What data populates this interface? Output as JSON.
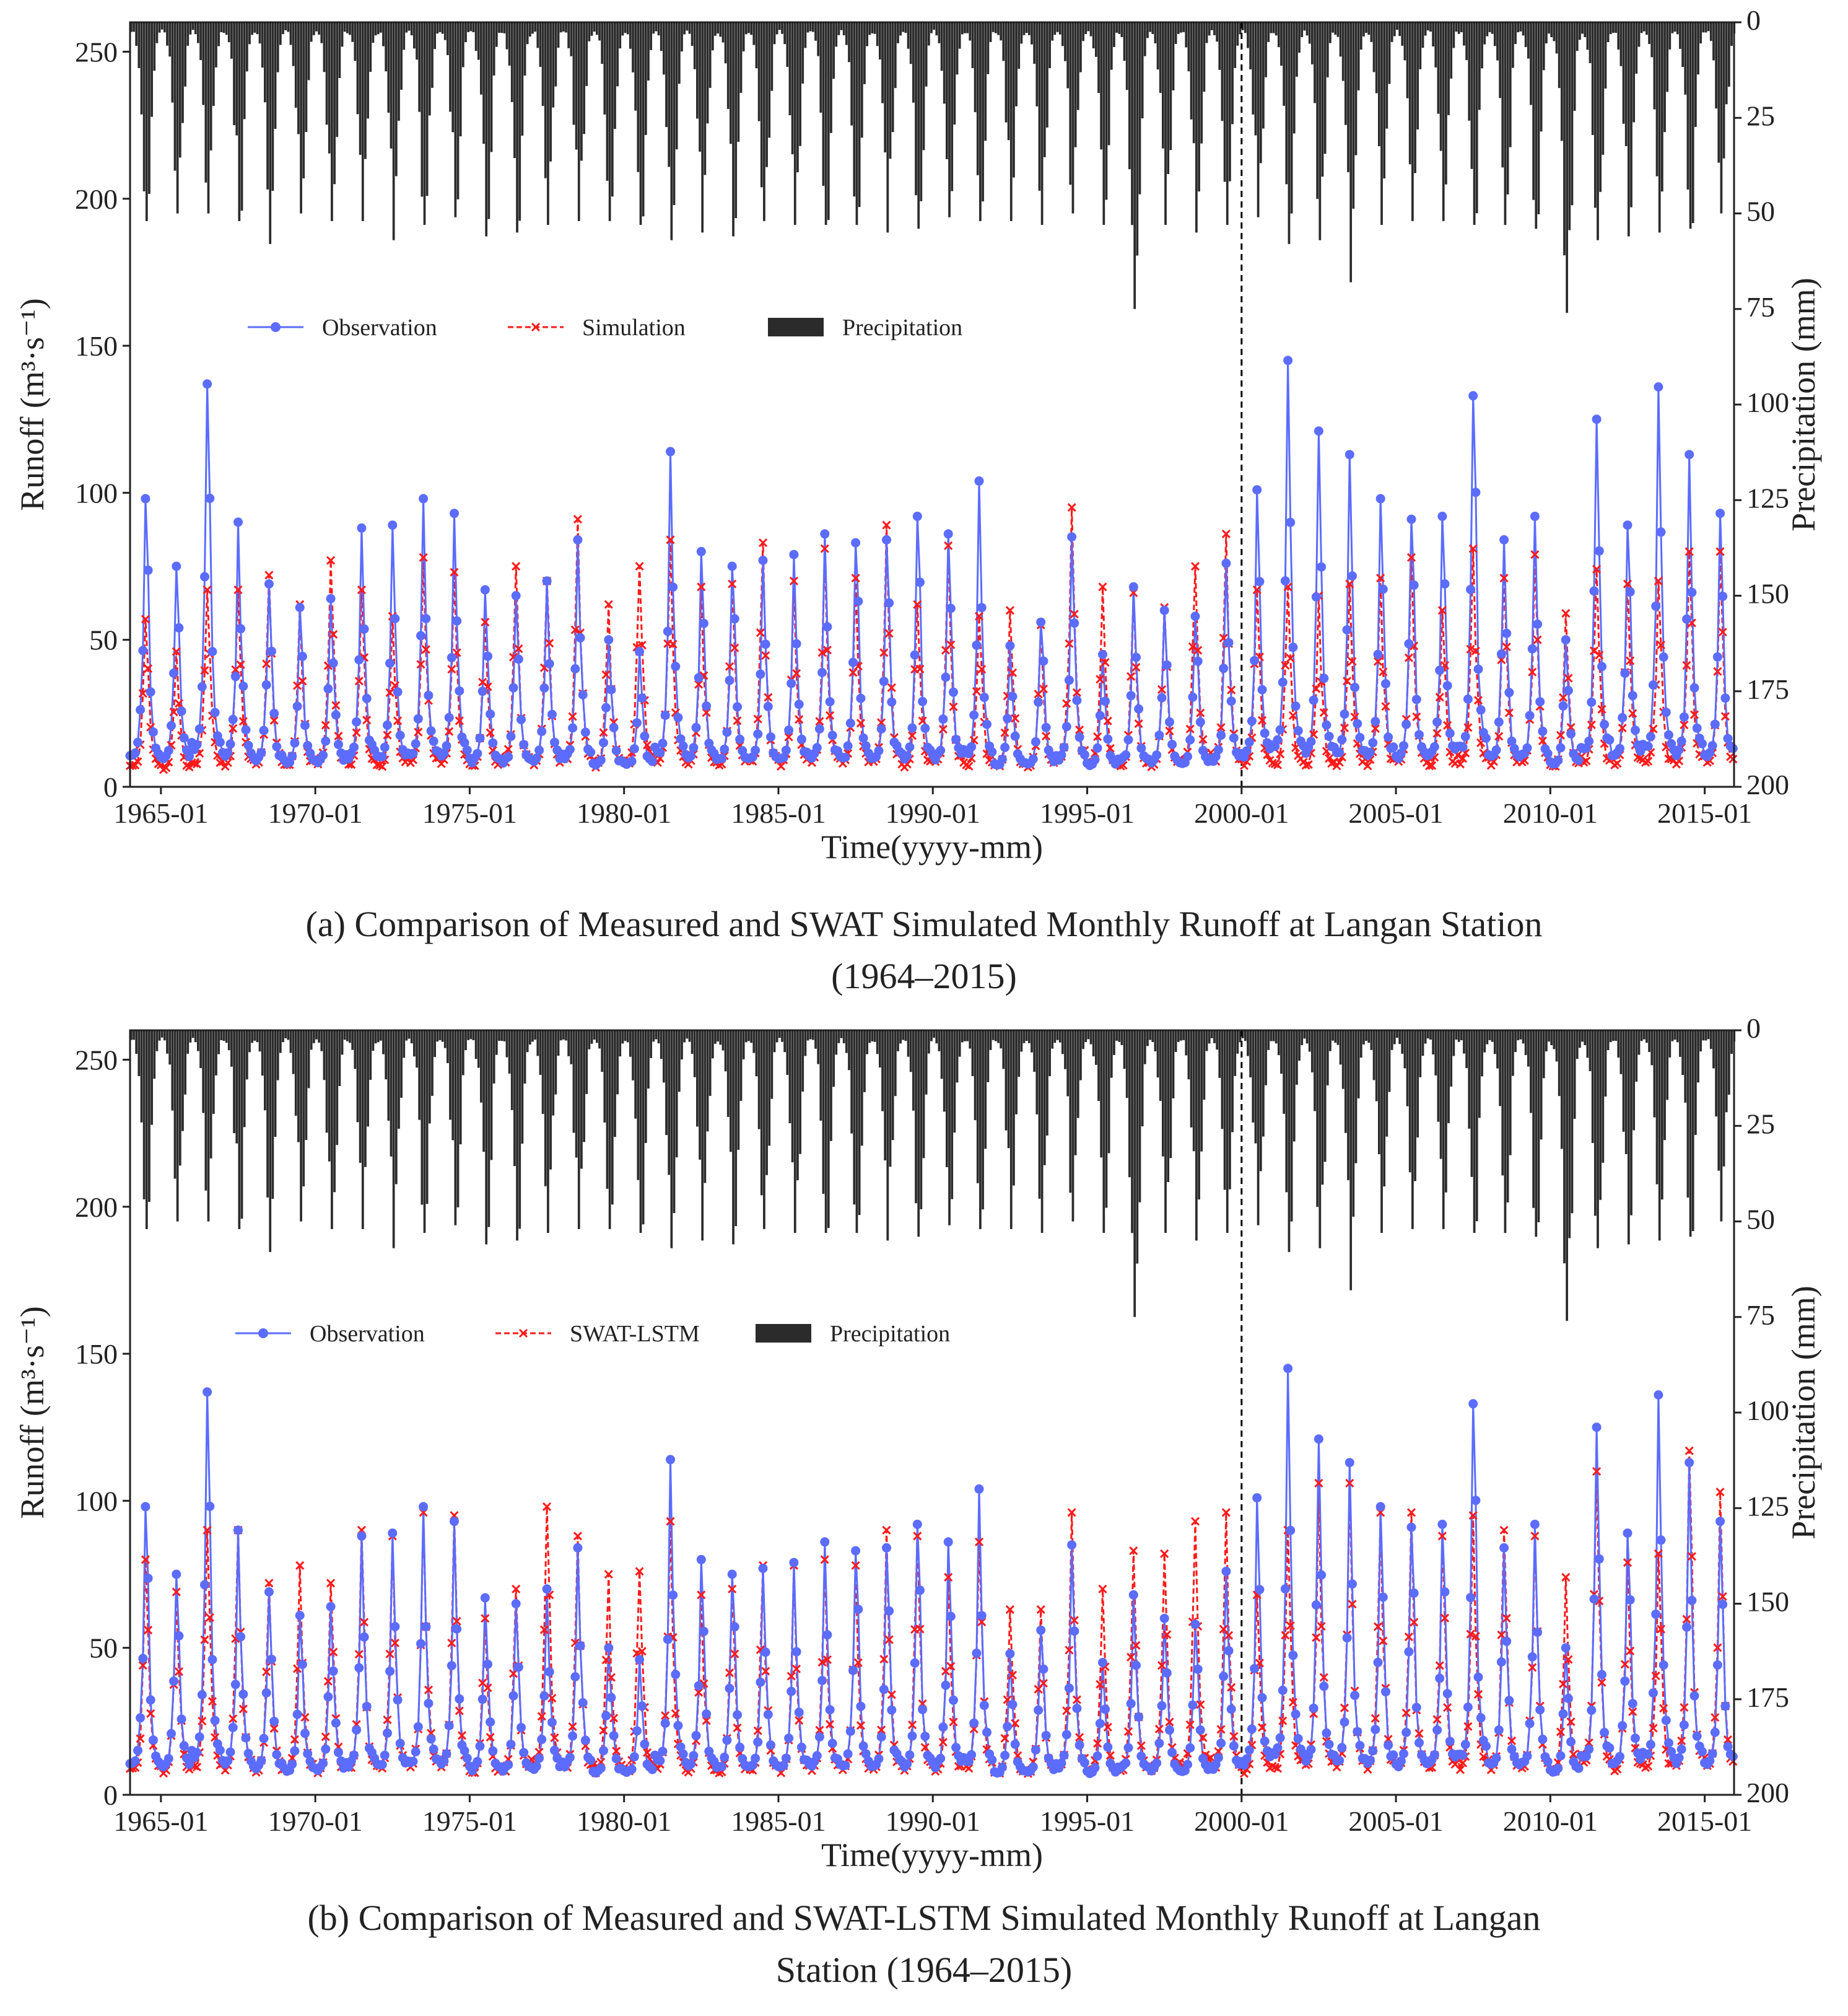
{
  "figure": {
    "caption_a_line1": "(a) Comparison of Measured and SWAT Simulated Monthly Runoff at Langan Station",
    "caption_a_line2": "(1964–2015)",
    "caption_b_line1": "(b) Comparison of Measured and SWAT-LSTM Simulated Monthly Runoff at Langan",
    "caption_b_line2": "Station (1964–2015)"
  },
  "colors": {
    "observation": "#5b6cff",
    "simulation": "#ff1a1a",
    "precipitation": "#2b2b2b",
    "divider": "#000000"
  },
  "chart_data": [
    {
      "type": "line",
      "panel": "a",
      "xlabel": "Time(yyyy-mm)",
      "ylabel": "Runoff (m³·s⁻¹)",
      "y2label": "Precipitation (mm)",
      "xlim": [
        1964,
        2015.95
      ],
      "ylim": [
        0,
        260
      ],
      "y2lim": [
        200,
        0
      ],
      "x_ticks": [
        "1965-01",
        "1970-01",
        "1975-01",
        "1980-01",
        "1985-01",
        "1990-01",
        "1995-01",
        "2000-01",
        "2005-01",
        "2010-01",
        "2015-01"
      ],
      "x_tick_values": [
        1965,
        1970,
        1975,
        1980,
        1985,
        1990,
        1995,
        2000,
        2005,
        2010,
        2015
      ],
      "y_ticks": [
        0,
        50,
        100,
        150,
        200,
        250
      ],
      "y2_ticks": [
        0,
        25,
        50,
        75,
        100,
        125,
        150,
        175,
        200
      ],
      "divider_x": 2000,
      "legend": {
        "position": "upper-left",
        "entries": [
          "Observation",
          "Simulation",
          "Precipitation"
        ]
      },
      "annual": {
        "years": [
          1964,
          1965,
          1966,
          1967,
          1968,
          1969,
          1970,
          1971,
          1972,
          1973,
          1974,
          1975,
          1976,
          1977,
          1978,
          1979,
          1980,
          1981,
          1982,
          1983,
          1984,
          1985,
          1986,
          1987,
          1988,
          1989,
          1990,
          1991,
          1992,
          1993,
          1994,
          1995,
          1996,
          1997,
          1998,
          1999,
          2000,
          2001,
          2002,
          2003,
          2004,
          2005,
          2006,
          2007,
          2008,
          2009,
          2010,
          2011,
          2012,
          2013,
          2014,
          2015
        ],
        "obs_peak": [
          98,
          75,
          137,
          90,
          69,
          61,
          64,
          88,
          89,
          98,
          93,
          67,
          65,
          70,
          84,
          50,
          46,
          114,
          80,
          75,
          77,
          79,
          86,
          83,
          84,
          92,
          86,
          104,
          48,
          56,
          85,
          45,
          68,
          60,
          58,
          76,
          101,
          145,
          121,
          113,
          98,
          91,
          92,
          133,
          84,
          92,
          50,
          125,
          89,
          136,
          113,
          93
        ],
        "sim_peak": [
          57,
          46,
          67,
          67,
          72,
          62,
          77,
          67,
          58,
          78,
          73,
          56,
          75,
          70,
          91,
          62,
          75,
          84,
          68,
          69,
          83,
          70,
          81,
          71,
          89,
          62,
          82,
          58,
          60,
          55,
          95,
          68,
          66,
          61,
          75,
          86,
          67,
          68,
          65,
          69,
          71,
          78,
          60,
          81,
          71,
          79,
          59,
          74,
          69,
          70,
          80,
          80
        ],
        "precip_peak": [
          52,
          50,
          50,
          52,
          58,
          50,
          52,
          52,
          57,
          53,
          51,
          56,
          55,
          53,
          52,
          52,
          53,
          57,
          55,
          56,
          52,
          53,
          53,
          53,
          55,
          54,
          51,
          52,
          52,
          53,
          50,
          53,
          75,
          53,
          55,
          53,
          51,
          58,
          57,
          68,
          53,
          52,
          52,
          53,
          53,
          54,
          76,
          57,
          56,
          55,
          54,
          50
        ]
      }
    },
    {
      "type": "line",
      "panel": "b",
      "xlabel": "Time(yyyy-mm)",
      "ylabel": "Runoff (m³·s⁻¹)",
      "y2label": "Precipitation (mm)",
      "xlim": [
        1964,
        2015.95
      ],
      "ylim": [
        0,
        260
      ],
      "y2lim": [
        200,
        0
      ],
      "x_ticks": [
        "1965-01",
        "1970-01",
        "1975-01",
        "1980-01",
        "1985-01",
        "1990-01",
        "1995-01",
        "2000-01",
        "2005-01",
        "2010-01",
        "2015-01"
      ],
      "x_tick_values": [
        1965,
        1970,
        1975,
        1980,
        1985,
        1990,
        1995,
        2000,
        2005,
        2010,
        2015
      ],
      "y_ticks": [
        0,
        50,
        100,
        150,
        200,
        250
      ],
      "y2_ticks": [
        0,
        25,
        50,
        75,
        100,
        125,
        150,
        175,
        200
      ],
      "divider_x": 2000,
      "legend": {
        "position": "upper-left",
        "entries": [
          "Observation",
          "SWAT-LSTM",
          "Precipitation"
        ]
      },
      "annual": {
        "years": [
          1964,
          1965,
          1966,
          1967,
          1968,
          1969,
          1970,
          1971,
          1972,
          1973,
          1974,
          1975,
          1976,
          1977,
          1978,
          1979,
          1980,
          1981,
          1982,
          1983,
          1984,
          1985,
          1986,
          1987,
          1988,
          1989,
          1990,
          1991,
          1992,
          1993,
          1994,
          1995,
          1996,
          1997,
          1998,
          1999,
          2000,
          2001,
          2002,
          2003,
          2004,
          2005,
          2006,
          2007,
          2008,
          2009,
          2010,
          2011,
          2012,
          2013,
          2014,
          2015
        ],
        "obs_peak": [
          98,
          75,
          137,
          90,
          69,
          61,
          64,
          88,
          89,
          98,
          93,
          67,
          65,
          70,
          84,
          50,
          46,
          114,
          80,
          75,
          77,
          79,
          86,
          83,
          84,
          92,
          86,
          104,
          48,
          56,
          85,
          45,
          68,
          60,
          58,
          76,
          101,
          145,
          121,
          113,
          98,
          91,
          92,
          133,
          84,
          92,
          50,
          125,
          89,
          136,
          113,
          93
        ],
        "sim_peak": [
          80,
          69,
          90,
          90,
          72,
          78,
          72,
          90,
          88,
          96,
          95,
          60,
          70,
          98,
          88,
          75,
          76,
          93,
          68,
          70,
          78,
          78,
          80,
          78,
          90,
          88,
          74,
          86,
          63,
          63,
          96,
          70,
          83,
          82,
          93,
          96,
          68,
          90,
          106,
          106,
          96,
          96,
          88,
          95,
          90,
          88,
          74,
          110,
          79,
          82,
          117,
          103
        ],
        "precip_peak": [
          52,
          50,
          50,
          52,
          58,
          50,
          52,
          52,
          57,
          53,
          51,
          56,
          55,
          53,
          52,
          52,
          53,
          57,
          55,
          56,
          52,
          53,
          53,
          53,
          55,
          54,
          51,
          52,
          52,
          53,
          50,
          53,
          75,
          53,
          55,
          53,
          51,
          58,
          57,
          68,
          53,
          52,
          52,
          53,
          53,
          54,
          76,
          57,
          56,
          55,
          54,
          50
        ]
      }
    }
  ]
}
